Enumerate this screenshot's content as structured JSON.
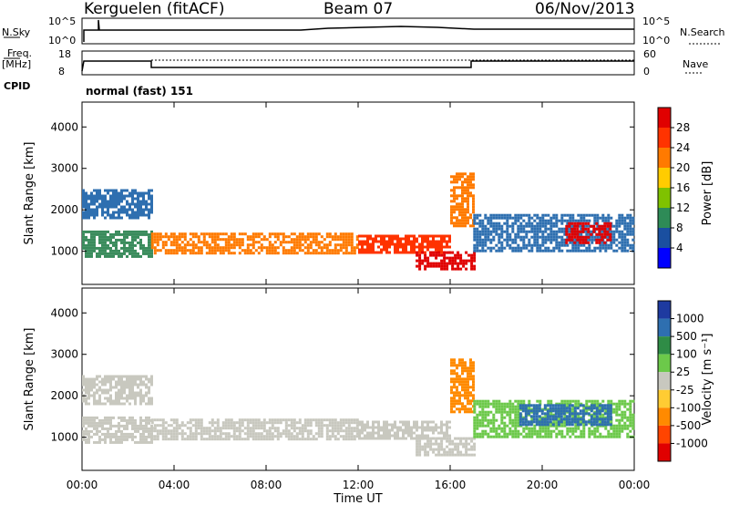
{
  "header": {
    "station": "Kerguelen (fitACF)",
    "beam": "Beam 07",
    "date": "06/Nov/2013"
  },
  "top_panels": {
    "nsky_label": "N.Sky",
    "nsky_ticks": [
      "10^5",
      "10^0"
    ],
    "nsearch_label": "N.Search",
    "freq_label_line1": "Freq.",
    "freq_label_line2": "[MHz]",
    "freq_ticks": [
      "18",
      "8"
    ],
    "nave_ticks": [
      "60",
      "0"
    ],
    "nave_label": "Nave",
    "cpid_label": "CPID",
    "cpid_value": "normal (fast) 151"
  },
  "colorbars": {
    "power": {
      "label": "Power [dB]",
      "ticks": [
        "28",
        "24",
        "20",
        "16",
        "12",
        "8",
        "4"
      ],
      "colors": [
        "#e00000",
        "#ff3300",
        "#ff7a00",
        "#ffcc00",
        "#7fc200",
        "#2e8b57",
        "#1a4fa0",
        "#0000ff"
      ]
    },
    "velocity": {
      "label": "Velocity [m s⁻¹]",
      "ticks": [
        "1000",
        "500",
        "100",
        "25",
        "-25",
        "-100",
        "-500",
        "-1000"
      ],
      "colors": [
        "#1e3aa0",
        "#2e6fb0",
        "#2f8c46",
        "#6cc94a",
        "#c8c8bf",
        "#ffcc33",
        "#ff8a00",
        "#ff4400",
        "#e00000"
      ]
    }
  },
  "chart_data": [
    {
      "type": "heatmap",
      "name": "power",
      "title": "",
      "xlabel": "Time UT",
      "ylabel": "Slant Range [km]",
      "xlim": [
        0,
        24
      ],
      "ylim": [
        200,
        4600
      ],
      "yticks": [
        "4000",
        "3000",
        "2000",
        "1000"
      ],
      "xticks": [
        "00:00",
        "04:00",
        "08:00",
        "12:00",
        "16:00",
        "20:00",
        "00:00"
      ],
      "xtick_hours": [
        0,
        4,
        8,
        12,
        16,
        20,
        24
      ],
      "echo_bands": [
        {
          "t0": 0.0,
          "t1": 3.0,
          "r0": 1800,
          "r1": 2500,
          "color": "#2e6fb0"
        },
        {
          "t0": 0.0,
          "t1": 3.0,
          "r0": 900,
          "r1": 1500,
          "color": "#3a8c5c"
        },
        {
          "t0": 3.0,
          "t1": 12.0,
          "r0": 950,
          "r1": 1450,
          "color": "#ff7a00"
        },
        {
          "t0": 12.0,
          "t1": 16.0,
          "r0": 950,
          "r1": 1400,
          "color": "#ff3300"
        },
        {
          "t0": 14.5,
          "t1": 17.0,
          "r0": 600,
          "r1": 1000,
          "color": "#e00000"
        },
        {
          "t0": 16.0,
          "t1": 17.0,
          "r0": 1600,
          "r1": 2900,
          "color": "#ff7a00"
        },
        {
          "t0": 17.0,
          "t1": 24.0,
          "r0": 1000,
          "r1": 1900,
          "color": "#2e6fb0"
        },
        {
          "t0": 21.0,
          "t1": 23.0,
          "r0": 1200,
          "r1": 1700,
          "color": "#e00000"
        }
      ]
    },
    {
      "type": "heatmap",
      "name": "velocity",
      "title": "",
      "xlabel": "Time UT",
      "ylabel": "Slant Range [km]",
      "xlim": [
        0,
        24
      ],
      "ylim": [
        200,
        4600
      ],
      "yticks": [
        "4000",
        "3000",
        "2000",
        "1000"
      ],
      "xticks": [
        "00:00",
        "04:00",
        "08:00",
        "12:00",
        "16:00",
        "20:00",
        "00:00"
      ],
      "xtick_hours": [
        0,
        4,
        8,
        12,
        16,
        20,
        24
      ],
      "echo_bands": [
        {
          "t0": 0.0,
          "t1": 3.0,
          "r0": 1800,
          "r1": 2500,
          "color": "#c8c8bf"
        },
        {
          "t0": 0.0,
          "t1": 3.0,
          "r0": 900,
          "r1": 1500,
          "color": "#c8c8bf"
        },
        {
          "t0": 3.0,
          "t1": 12.0,
          "r0": 950,
          "r1": 1450,
          "color": "#c8c8bf"
        },
        {
          "t0": 12.0,
          "t1": 16.0,
          "r0": 950,
          "r1": 1400,
          "color": "#c8c8bf"
        },
        {
          "t0": 14.5,
          "t1": 17.0,
          "r0": 600,
          "r1": 1000,
          "color": "#c8c8bf"
        },
        {
          "t0": 16.0,
          "t1": 17.0,
          "r0": 1600,
          "r1": 2900,
          "color": "#ff8a00"
        },
        {
          "t0": 17.0,
          "t1": 24.0,
          "r0": 1000,
          "r1": 1900,
          "color": "#6cc94a"
        },
        {
          "t0": 19.0,
          "t1": 23.0,
          "r0": 1300,
          "r1": 1800,
          "color": "#2e6fb0"
        }
      ]
    }
  ]
}
